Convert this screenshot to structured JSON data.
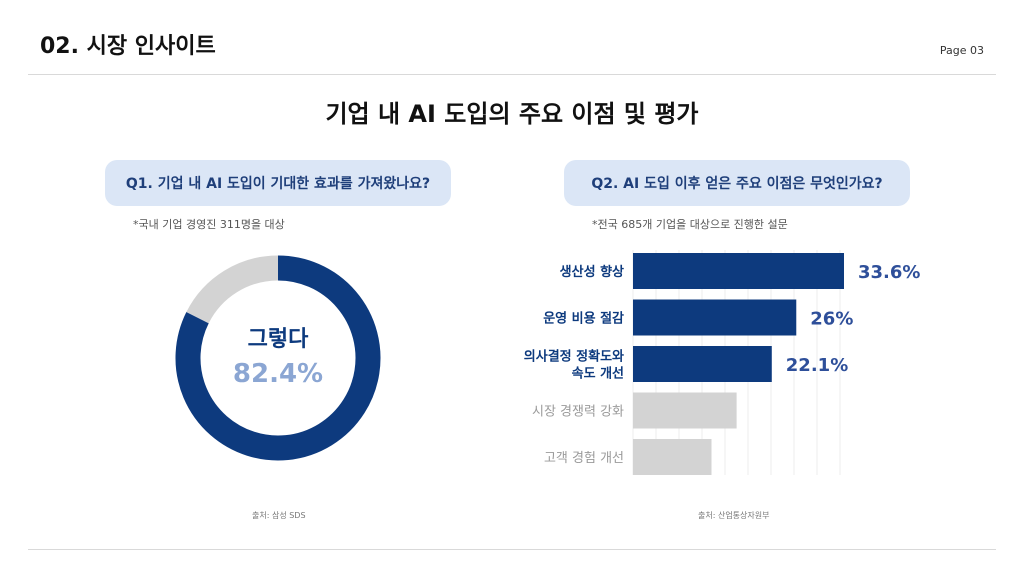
{
  "header": {
    "section_title": "02. 시장 인사이트",
    "page_label": "Page 03"
  },
  "main_title": "기업 내 AI 도입의 주요 이점 및 평가",
  "q1": {
    "question": "Q1. 기업 내 AI 도입이 기대한 효과를 가져왔나요?",
    "note": "*국내 기업 경영진 311명을 대상",
    "source": "출처: 삼성 SDS"
  },
  "q2": {
    "question": "Q2. AI 도입 이후 얻은 주요 이점은 무엇인가요?",
    "note": "*전국 685개 기업을 대상으로 진행한 설문",
    "source": "출처: 산업통상자원부"
  },
  "colors": {
    "navy": "#0d3a7e",
    "light_blue_text": "#8ba6d3",
    "gray_bar": "#d3d3d3",
    "gray_label": "#9a9a9a",
    "value_blue": "#2e4f9a"
  },
  "chart_data": [
    {
      "type": "pie",
      "style": "donut",
      "slices": [
        {
          "label": "그렇다",
          "value": 82.4,
          "display": "82.4%"
        },
        {
          "label": "",
          "value": 17.6
        }
      ]
    },
    {
      "type": "bar",
      "orientation": "horizontal",
      "categories": [
        "생산성 향상",
        "운영 비용 절감",
        "의사결정 정확도와\n속도 개선",
        "시장 경쟁력 강화",
        "고객 경험 개선"
      ],
      "values": [
        33.6,
        26,
        22.1,
        16.5,
        12.5
      ],
      "value_labels": [
        "33.6%",
        "26%",
        "22.1%",
        "",
        ""
      ],
      "highlighted": [
        true,
        true,
        true,
        false,
        false
      ],
      "grid": true
    }
  ]
}
